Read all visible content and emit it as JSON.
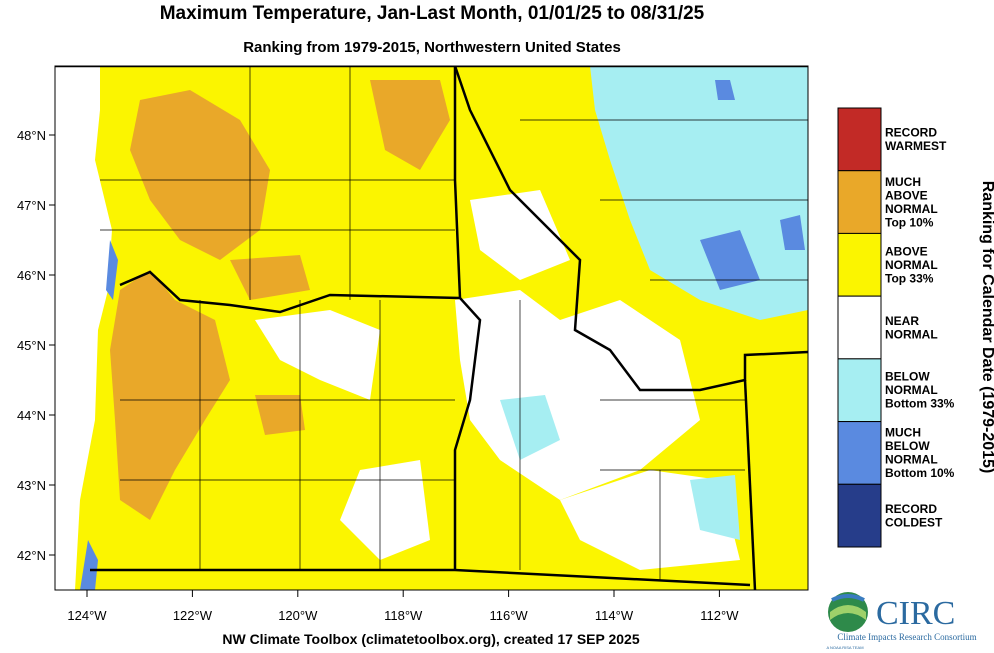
{
  "header": {
    "title": "Maximum Temperature, Jan-Last Month, 01/01/25 to 08/31/25",
    "subtitle": "Ranking from 1979-2015, Northwestern United States"
  },
  "map": {
    "lat_ticks": [
      "48°N",
      "47°N",
      "46°N",
      "45°N",
      "44°N",
      "43°N",
      "42°N"
    ],
    "lon_ticks": [
      "124°W",
      "122°W",
      "120°W",
      "118°W",
      "116°W",
      "114°W",
      "112°W"
    ]
  },
  "legend": {
    "title": "Ranking for Calendar Date (1979-2015)",
    "items": [
      {
        "lines": [
          "RECORD",
          "WARMEST"
        ],
        "color": "#c22a26"
      },
      {
        "lines": [
          "MUCH",
          "ABOVE",
          "NORMAL",
          "Top 10%"
        ],
        "color": "#e9a829"
      },
      {
        "lines": [
          "ABOVE",
          "NORMAL",
          "Top 33%"
        ],
        "color": "#fbf500"
      },
      {
        "lines": [
          "NEAR",
          "NORMAL"
        ],
        "color": "#ffffff"
      },
      {
        "lines": [
          "BELOW",
          "NORMAL",
          "Bottom 33%"
        ],
        "color": "#a6eef2"
      },
      {
        "lines": [
          "MUCH",
          "BELOW",
          "NORMAL",
          "Bottom 10%"
        ],
        "color": "#5a8ae0"
      },
      {
        "lines": [
          "RECORD",
          "COLDEST"
        ],
        "color": "#263d8a"
      }
    ]
  },
  "footer": {
    "credit": "NW Climate Toolbox (climatetoolbox.org), created 17 SEP 2025"
  },
  "logo": {
    "name": "CIRC",
    "full_name": "Climate Impacts Research Consortium",
    "tagline": "A NOAA RISA TEAM"
  }
}
